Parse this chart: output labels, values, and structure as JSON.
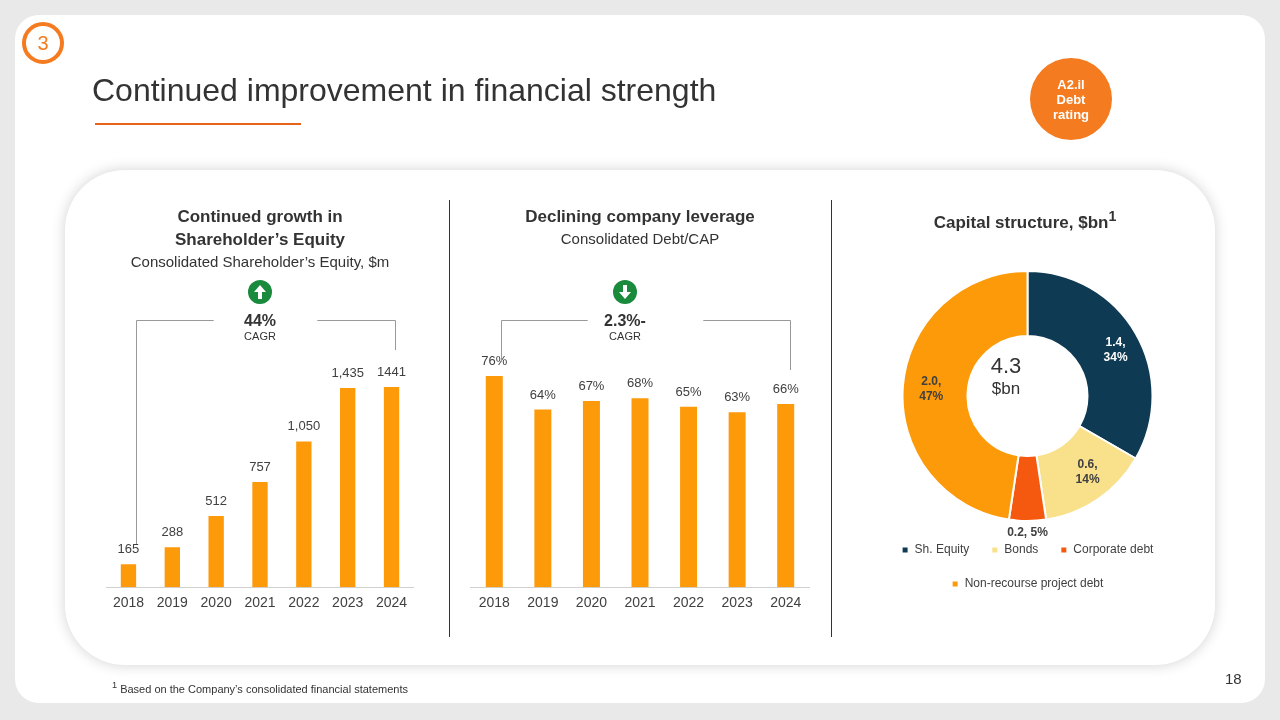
{
  "chart_data": [
    {
      "type": "bar",
      "title": "Continued growth in Shareholder’s Equity",
      "subtitle": "Consolidated Shareholder’s Equity, $m",
      "categories": [
        "2018",
        "2019",
        "2020",
        "2021",
        "2022",
        "2023",
        "2024"
      ],
      "values": [
        165,
        288,
        512,
        757,
        1050,
        1435,
        1441
      ],
      "value_labels": [
        "165",
        "288",
        "512",
        "757",
        "1,050",
        "1,435",
        "1441"
      ],
      "color": "#fd9a0a",
      "annotations": [
        "44%",
        "CAGR",
        "Continued improvement in financial strength",
        "A2.il Debt rating",
        "3",
        "18",
        "$^{1}$ Based on the Company’s consolidated financial statements"
      ]
    },
    {
      "type": "bar",
      "title": "Declining company leverage",
      "subtitle": "Consolidated Debt/CAP",
      "categories": [
        "2018",
        "2019",
        "2020",
        "2021",
        "2022",
        "2023",
        "2024"
      ],
      "values": [
        76,
        64,
        67,
        68,
        65,
        63,
        66
      ],
      "value_labels": [
        "76%",
        "64%",
        "67%",
        "68%",
        "65%",
        "63%",
        "66%"
      ],
      "color": "#fd9a0a",
      "annotations": [
        "2.3%-",
        "CAGR"
      ]
    },
    {
      "type": "donut",
      "title": "Capital structure, $bn$^{1}$",
      "categories": [
        "Sh. Equity",
        "Bonds",
        "Corporate debt",
        "Non-recourse project debt"
      ],
      "values": [
        1.4,
        0.6,
        0.2,
        2.0
      ],
      "value_labels": [
        "1.4, 34%",
        "0.6, 14%",
        "0.2, 5%",
        "2.0, 47%"
      ],
      "colors": [
        "#0e3a53",
        "#f9e08a",
        "#f4590f",
        "#fd9a0a"
      ],
      "legend": "bottom",
      "annotations": [
        "4.3",
        "$bn"
      ]
    }
  ]
}
